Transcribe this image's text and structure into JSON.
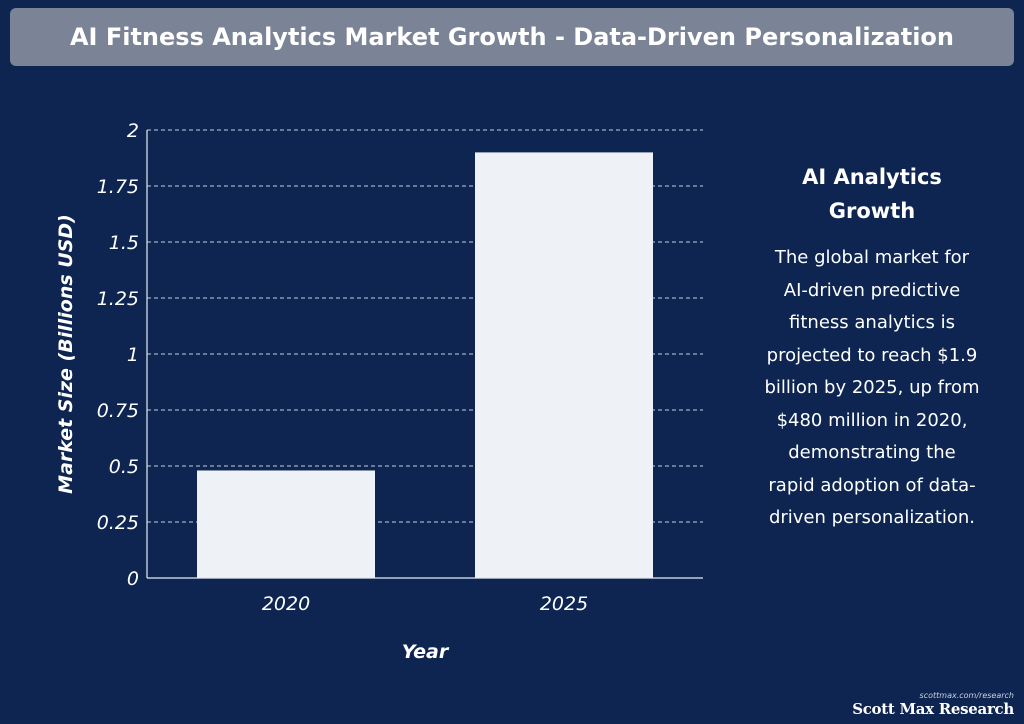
{
  "header": {
    "title": "AI Fitness Analytics Market Growth - Data-Driven Personalization"
  },
  "chart_data": {
    "type": "bar",
    "categories": [
      "2020",
      "2025"
    ],
    "values": [
      0.48,
      1.9
    ],
    "title": "",
    "xlabel": "Year",
    "ylabel": "Market Size (Billions USD)",
    "ylim": [
      0,
      2
    ],
    "yticks": [
      "0",
      "0.25",
      "0.5",
      "0.75",
      "1",
      "1.25",
      "1.5",
      "1.75",
      "2"
    ],
    "grid": true,
    "colors": {
      "bar": "#eef2f7",
      "grid": "#c8d0dc",
      "axis": "#e8ecf2",
      "background": "#0d2550"
    }
  },
  "side_panel": {
    "heading_line1": "AI Analytics",
    "heading_line2": "Growth",
    "lines": [
      "The global market for",
      "AI-driven predictive",
      "fitness analytics is",
      "projected to reach $1.9",
      "billion by 2025, up from",
      "$480 million in 2020,",
      "demonstrating the",
      "rapid adoption of data-",
      "driven personalization."
    ]
  },
  "brand": {
    "url": "scottmax.com/research",
    "name": "Scott Max Research"
  }
}
